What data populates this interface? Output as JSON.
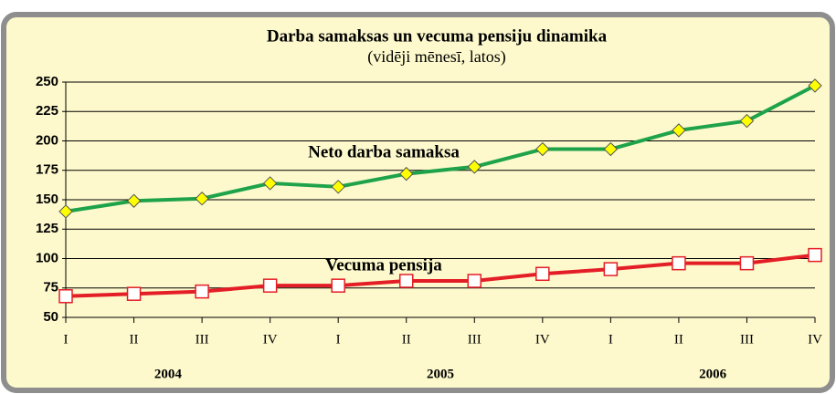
{
  "chart_data": {
    "type": "line",
    "title": "Darba samaksas un vecuma pensiju dinamika",
    "subtitle": "(vidēji mēnesī, latos)",
    "categories": [
      "I",
      "II",
      "III",
      "IV",
      "I",
      "II",
      "III",
      "IV",
      "I",
      "II",
      "III",
      "IV"
    ],
    "category_groups": [
      "2004",
      "2005",
      "2006"
    ],
    "series": [
      {
        "name": "Neto darba samaksa",
        "color": "#1ea34a",
        "marker": "diamond",
        "marker_fill": "#ffff00",
        "values": [
          140,
          149,
          151,
          164,
          161,
          172,
          178,
          193,
          193,
          209,
          217,
          247
        ]
      },
      {
        "name": "Vecuma pensija",
        "color": "#e41e26",
        "marker": "square",
        "marker_fill": "#ffffff",
        "values": [
          68,
          70,
          72,
          77,
          77,
          81,
          81,
          87,
          91,
          96,
          96,
          103
        ]
      }
    ],
    "ylim": [
      50,
      250
    ],
    "yticks": [
      50,
      75,
      100,
      125,
      150,
      175,
      200,
      225,
      250
    ],
    "grid": true
  }
}
